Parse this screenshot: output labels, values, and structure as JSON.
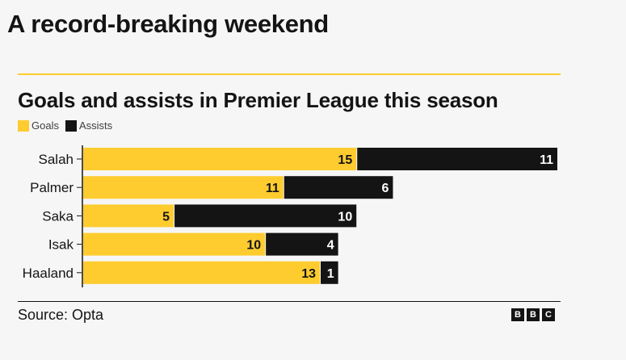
{
  "headline": "A record-breaking weekend",
  "source": "Source: Opta",
  "logo": [
    "B",
    "B",
    "C"
  ],
  "colors": {
    "goals": "#fecc2f",
    "assists": "#141414",
    "background": "#f6f6f6"
  },
  "chart_data": {
    "type": "bar",
    "orientation": "horizontal",
    "stacked": true,
    "title": "Goals and assists in Premier League this season",
    "xlabel": "",
    "ylabel": "",
    "categories": [
      "Salah",
      "Palmer",
      "Saka",
      "Isak",
      "Haaland"
    ],
    "series": [
      {
        "name": "Goals",
        "values": [
          15,
          11,
          5,
          10,
          13
        ]
      },
      {
        "name": "Assists",
        "values": [
          11,
          6,
          10,
          4,
          1
        ]
      }
    ],
    "xlim": [
      0,
      26
    ],
    "grid": false,
    "legend": "top-left",
    "data_labels": true
  }
}
